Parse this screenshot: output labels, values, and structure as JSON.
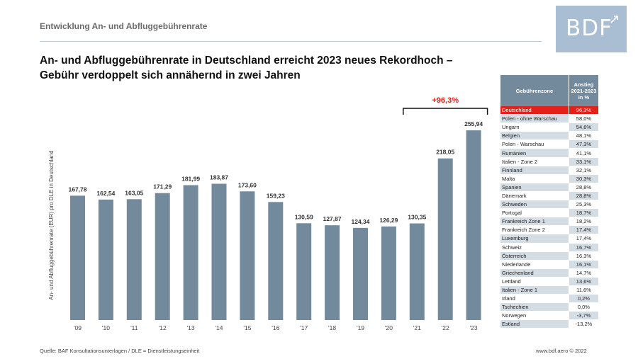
{
  "section_title": "Entwicklung An- und Abfluggebührenrate",
  "logo": {
    "text": "BDF"
  },
  "headline": {
    "line1": "An- und Abfluggebührenrate in Deutschland erreicht 2023 neues Rekordhoch –",
    "line2": "Gebühr verdoppelt sich annähernd in zwei Jahren"
  },
  "chart_data": {
    "type": "bar",
    "ylabel": "An- und Abfluggebührenrate (EUR) pro DLE in Deutschland",
    "categories": [
      "'09",
      "'10",
      "'11",
      "'12",
      "'13",
      "'14",
      "'15",
      "'16",
      "'17",
      "'18",
      "'19",
      "'20",
      "'21",
      "'22",
      "'23"
    ],
    "values": [
      167.78,
      162.54,
      163.05,
      171.29,
      181.99,
      183.87,
      173.6,
      159.23,
      130.59,
      127.87,
      124.34,
      126.29,
      130.35,
      218.05,
      255.94
    ],
    "value_labels": [
      "167,78",
      "162,54",
      "163,05",
      "171,29",
      "181,99",
      "183,87",
      "173,60",
      "159,23",
      "130,59",
      "127,87",
      "124,34",
      "126,29",
      "130,35",
      "218,05",
      "255,94"
    ],
    "ylim": [
      0,
      256
    ],
    "grid": false,
    "bar_color": "#738a9c",
    "annotation": {
      "text": "+96,3%",
      "from": "'21",
      "to": "'23",
      "color": "#e32119"
    }
  },
  "table": {
    "header_zone": "Gebührenzone",
    "header_change": "Anstieg 2021-2023 in %",
    "highlight_color": "#e32119",
    "rows": [
      {
        "zone": "Deutschland",
        "change": "96,3%",
        "highlight": true
      },
      {
        "zone": "Polen - ohne Warschau",
        "change": "58,0%"
      },
      {
        "zone": "Ungarn",
        "change": "54,6%"
      },
      {
        "zone": "Belgien",
        "change": "48,1%"
      },
      {
        "zone": "Polen - Warschau",
        "change": "47,3%"
      },
      {
        "zone": "Rumänien",
        "change": "41,1%"
      },
      {
        "zone": "Italien - Zone 2",
        "change": "33,1%"
      },
      {
        "zone": "Finnland",
        "change": "32,1%"
      },
      {
        "zone": "Malta",
        "change": "30,3%"
      },
      {
        "zone": "Spanien",
        "change": "28,8%"
      },
      {
        "zone": "Dänemark",
        "change": "28,8%"
      },
      {
        "zone": "Schweden",
        "change": "25,3%"
      },
      {
        "zone": "Portugal",
        "change": "18,7%"
      },
      {
        "zone": "Frankreich Zone 1",
        "change": "18,2%"
      },
      {
        "zone": "Frankreich Zone 2",
        "change": "17,4%"
      },
      {
        "zone": "Luxemburg",
        "change": "17,4%"
      },
      {
        "zone": "Schweiz",
        "change": "16,7%"
      },
      {
        "zone": "Österreich",
        "change": "16,3%"
      },
      {
        "zone": "Niederlande",
        "change": "16,1%"
      },
      {
        "zone": "Griechenland",
        "change": "14,7%"
      },
      {
        "zone": "Lettland",
        "change": "13,6%"
      },
      {
        "zone": "Italien - Zone 1",
        "change": "11,6%"
      },
      {
        "zone": "Irland",
        "change": "0,2%"
      },
      {
        "zone": "Tschechien",
        "change": "0,0%"
      },
      {
        "zone": "Norwegen",
        "change": "-3,7%"
      },
      {
        "zone": "Estland",
        "change": "-13,2%"
      }
    ]
  },
  "footer": {
    "source": "Quelle: BAF Konsultationsunterlagen / DLE = Dienstleistungseinheit",
    "copyright": "www.bdf.aero © 2022"
  }
}
